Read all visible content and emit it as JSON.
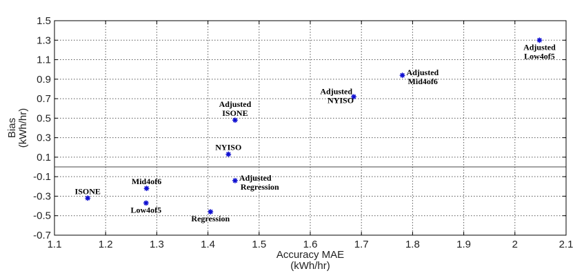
{
  "chart_data": {
    "type": "scatter",
    "xlabel": [
      "Accuracy MAE",
      "(kWh/hr)"
    ],
    "ylabel": [
      "Bias",
      "(kWh/hr)"
    ],
    "xlim": [
      1.1,
      2.1
    ],
    "ylim": [
      -0.7,
      1.5
    ],
    "x_ticks": [
      1.1,
      1.2,
      1.3,
      1.4,
      1.5,
      1.6,
      1.7,
      1.8,
      1.9,
      2,
      2.1
    ],
    "x_tick_labels": [
      "1.1",
      "1.2",
      "1.3",
      "1.4",
      "1.5",
      "1.6",
      "1.7",
      "1.8",
      "1.9",
      "2",
      "2.1"
    ],
    "y_ticks": [
      -0.7,
      -0.5,
      -0.3,
      -0.1,
      0.1,
      0.3,
      0.5,
      0.7,
      0.9,
      1.1,
      1.3,
      1.5
    ],
    "y_tick_labels": [
      "-0.7",
      "-0.5",
      "-0.3",
      "-0.1",
      "0.1",
      "0.3",
      "0.5",
      "0.7",
      "0.9",
      "1.1",
      "1.3",
      "1.5"
    ],
    "grid": true,
    "reference_line_y": 0,
    "marker_color": "#1010d0",
    "points": [
      {
        "label": [
          "ISONE"
        ],
        "x": 1.165,
        "y": -0.32,
        "label_pos": "above"
      },
      {
        "label": [
          "Mid4of6"
        ],
        "x": 1.28,
        "y": -0.22,
        "label_pos": "above"
      },
      {
        "label": [
          "Low4of5"
        ],
        "x": 1.279,
        "y": -0.37,
        "label_pos": "below"
      },
      {
        "label": [
          "Regression"
        ],
        "x": 1.405,
        "y": -0.46,
        "label_pos": "below"
      },
      {
        "label": [
          "Adjusted",
          "Regression"
        ],
        "x": 1.453,
        "y": -0.14,
        "label_pos": "right"
      },
      {
        "label": [
          "NYISO"
        ],
        "x": 1.44,
        "y": 0.13,
        "label_pos": "above"
      },
      {
        "label": [
          "Adjusted",
          "ISONE"
        ],
        "x": 1.453,
        "y": 0.48,
        "label_pos": "above"
      },
      {
        "label": [
          "Adjusted",
          "NYISO"
        ],
        "x": 1.685,
        "y": 0.72,
        "label_pos": "left"
      },
      {
        "label": [
          "Adjusted",
          "Mid4of6"
        ],
        "x": 1.78,
        "y": 0.94,
        "label_pos": "right"
      },
      {
        "label": [
          "Adjusted",
          "Low4of5"
        ],
        "x": 2.048,
        "y": 1.3,
        "label_pos": "below"
      }
    ]
  }
}
